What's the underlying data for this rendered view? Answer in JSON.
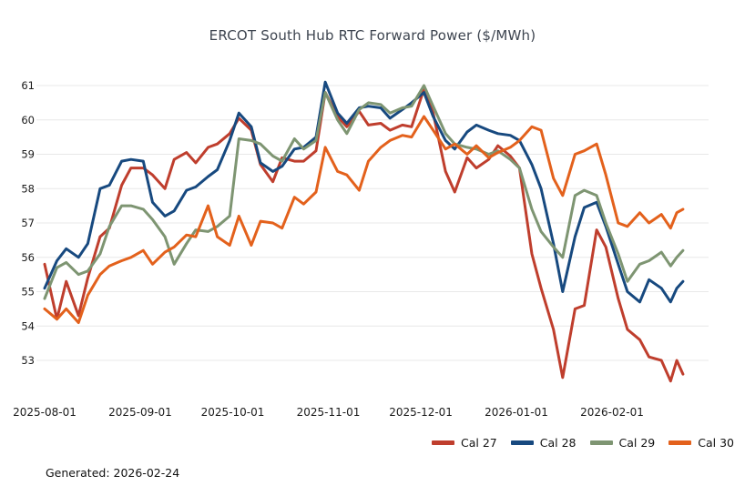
{
  "footer": {
    "generated_label": "Generated: 2026-02-24"
  },
  "colors": {
    "grid": "#e8e8e8",
    "title_text": "#3e4550",
    "axis_text": "#1a1a1a"
  },
  "chart_data": {
    "type": "line",
    "title": "ERCOT South Hub RTC Forward Power ($/MWh)",
    "xlabel": "",
    "ylabel": "",
    "grid": "horizontal",
    "legend_position": "bottom-right",
    "ylim": [
      52.2,
      61.3
    ],
    "yticks": [
      53,
      54,
      55,
      56,
      57,
      58,
      59,
      60,
      61
    ],
    "xticks": [
      "2025-08-01",
      "2025-09-01",
      "2025-10-01",
      "2025-11-01",
      "2025-12-01",
      "2026-01-01",
      "2026-02-01"
    ],
    "x": [
      "2025-08-01",
      "2025-08-05",
      "2025-08-08",
      "2025-08-12",
      "2025-08-15",
      "2025-08-19",
      "2025-08-22",
      "2025-08-26",
      "2025-08-29",
      "2025-09-02",
      "2025-09-05",
      "2025-09-09",
      "2025-09-12",
      "2025-09-16",
      "2025-09-19",
      "2025-09-23",
      "2025-09-26",
      "2025-09-30",
      "2025-10-03",
      "2025-10-07",
      "2025-10-10",
      "2025-10-14",
      "2025-10-17",
      "2025-10-21",
      "2025-10-24",
      "2025-10-28",
      "2025-10-31",
      "2025-11-04",
      "2025-11-07",
      "2025-11-11",
      "2025-11-14",
      "2025-11-18",
      "2025-11-21",
      "2025-11-25",
      "2025-11-28",
      "2025-12-02",
      "2025-12-05",
      "2025-12-09",
      "2025-12-12",
      "2025-12-16",
      "2025-12-19",
      "2025-12-23",
      "2025-12-26",
      "2025-12-30",
      "2026-01-02",
      "2026-01-06",
      "2026-01-09",
      "2026-01-13",
      "2026-01-16",
      "2026-01-20",
      "2026-01-23",
      "2026-01-27",
      "2026-01-30",
      "2026-02-03",
      "2026-02-06",
      "2026-02-10",
      "2026-02-13",
      "2026-02-17",
      "2026-02-20",
      "2026-02-22",
      "2026-02-24"
    ],
    "series": [
      {
        "name": "Cal 27",
        "color": "#bf3e2d",
        "values": [
          55.8,
          54.2,
          55.3,
          54.3,
          55.4,
          56.6,
          56.85,
          58.1,
          58.6,
          58.6,
          58.4,
          58.0,
          58.85,
          59.05,
          58.75,
          59.2,
          59.3,
          59.6,
          60.05,
          59.7,
          58.7,
          58.2,
          58.9,
          58.8,
          58.8,
          59.1,
          60.8,
          60.1,
          59.8,
          60.25,
          59.85,
          59.9,
          59.7,
          59.85,
          59.8,
          60.9,
          60.2,
          58.5,
          57.9,
          58.9,
          58.6,
          58.85,
          59.25,
          58.95,
          58.6,
          56.1,
          55.1,
          53.9,
          52.5,
          54.5,
          54.6,
          56.8,
          56.3,
          54.8,
          53.9,
          53.6,
          53.1,
          53.0,
          52.4,
          53.0,
          52.6
        ]
      },
      {
        "name": "Cal 28",
        "color": "#17497f",
        "values": [
          55.1,
          55.9,
          56.25,
          56.0,
          56.4,
          58.0,
          58.1,
          58.8,
          58.85,
          58.8,
          57.6,
          57.2,
          57.35,
          57.95,
          58.05,
          58.35,
          58.55,
          59.4,
          60.2,
          59.8,
          58.75,
          58.5,
          58.65,
          59.15,
          59.2,
          59.5,
          61.1,
          60.2,
          59.9,
          60.35,
          60.4,
          60.35,
          60.05,
          60.3,
          60.5,
          60.8,
          60.1,
          59.4,
          59.15,
          59.65,
          59.85,
          59.7,
          59.6,
          59.55,
          59.4,
          58.7,
          58.0,
          56.4,
          55.0,
          56.6,
          57.45,
          57.6,
          56.9,
          55.8,
          55.0,
          54.7,
          55.35,
          55.1,
          54.7,
          55.1,
          55.3
        ]
      },
      {
        "name": "Cal 29",
        "color": "#7e9572",
        "values": [
          54.8,
          55.7,
          55.85,
          55.5,
          55.6,
          56.1,
          56.9,
          57.5,
          57.5,
          57.4,
          57.1,
          56.6,
          55.8,
          56.4,
          56.8,
          56.75,
          56.9,
          57.2,
          59.45,
          59.4,
          59.3,
          58.95,
          58.8,
          59.45,
          59.15,
          59.4,
          60.8,
          60.0,
          59.6,
          60.3,
          60.5,
          60.45,
          60.2,
          60.35,
          60.4,
          61.0,
          60.4,
          59.6,
          59.3,
          59.2,
          59.15,
          59.0,
          59.1,
          58.85,
          58.6,
          57.4,
          56.75,
          56.3,
          56.0,
          57.8,
          57.95,
          57.8,
          57.0,
          56.1,
          55.3,
          55.8,
          55.9,
          56.15,
          55.75,
          56.0,
          56.2
        ]
      },
      {
        "name": "Cal 30",
        "color": "#e3611c",
        "values": [
          54.5,
          54.2,
          54.5,
          54.1,
          54.9,
          55.5,
          55.75,
          55.9,
          56.0,
          56.2,
          55.8,
          56.15,
          56.3,
          56.65,
          56.6,
          57.5,
          56.6,
          56.35,
          57.2,
          56.35,
          57.05,
          57.0,
          56.85,
          57.75,
          57.55,
          57.9,
          59.2,
          58.5,
          58.4,
          57.95,
          58.8,
          59.2,
          59.4,
          59.55,
          59.5,
          60.1,
          59.7,
          59.15,
          59.3,
          59.0,
          59.25,
          58.9,
          59.05,
          59.2,
          59.4,
          59.8,
          59.7,
          58.3,
          57.8,
          59.0,
          59.1,
          59.3,
          58.4,
          57.0,
          56.9,
          57.3,
          57.0,
          57.25,
          56.85,
          57.3,
          57.4
        ]
      }
    ]
  }
}
